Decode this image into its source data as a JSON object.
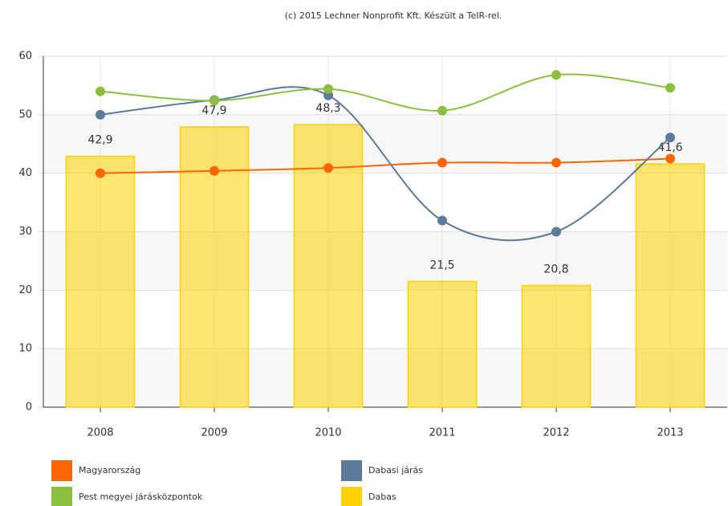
{
  "chart_data": {
    "type": "combo",
    "title": "(c) 2015 Lechner Nonprofit Kft. Készült a TeIR-rel.",
    "categories": [
      "2008",
      "2009",
      "2010",
      "2011",
      "2012",
      "2013"
    ],
    "ylim": [
      0,
      60
    ],
    "yticks": [
      0,
      10,
      20,
      30,
      40,
      50,
      60
    ],
    "grid": true,
    "series": [
      {
        "name": "Magyarország",
        "type": "line",
        "color": "#ff6600",
        "values": [
          40,
          40.4,
          40.9,
          41.8,
          41.8,
          42.5
        ]
      },
      {
        "name": "Dabasi járás",
        "type": "line",
        "color": "#5b7a9c",
        "values": [
          50,
          52.5,
          53.3,
          31.9,
          30,
          46.1
        ]
      },
      {
        "name": "Pest megyei járásközpontok",
        "type": "line",
        "color": "#8cbf3f",
        "values": [
          54,
          52.4,
          54.4,
          50.7,
          56.8,
          54.6
        ]
      },
      {
        "name": "Dabas",
        "type": "bar",
        "color": "#ffd200",
        "values": [
          42.9,
          47.9,
          48.3,
          21.5,
          20.8,
          41.6
        ],
        "value_labels": [
          "42,9",
          "47,9",
          "48,3",
          "21,5",
          "20,8",
          "41,6"
        ]
      }
    ]
  }
}
